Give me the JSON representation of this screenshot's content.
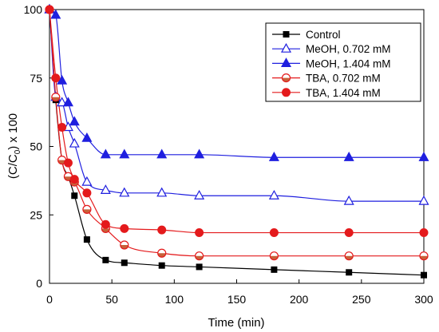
{
  "chart_data": {
    "type": "line",
    "xlabel": "Time (min)",
    "ylabel": {
      "text": "(C/C",
      "subscript": "0",
      "suffix": ") x 100"
    },
    "xlim": [
      0,
      300
    ],
    "ylim": [
      0,
      100
    ],
    "xticks": [
      0,
      50,
      100,
      150,
      200,
      250,
      300
    ],
    "yticks": [
      0,
      25,
      50,
      75,
      100
    ],
    "grid": false,
    "legend": "top-right",
    "x": [
      0,
      5,
      10,
      15,
      20,
      30,
      45,
      60,
      90,
      120,
      180,
      240,
      300
    ],
    "series": [
      {
        "name": "Control",
        "color": "#000000",
        "marker": "square-filled",
        "values": [
          100,
          67,
          45,
          39,
          32,
          16,
          8.5,
          7.5,
          6.5,
          6,
          5,
          4,
          3
        ]
      },
      {
        "name": "MeOH, 0.702 mM",
        "color": "#1f1fdf",
        "marker": "triangle-open",
        "values": [
          100,
          68,
          66,
          57,
          51,
          37,
          34,
          33,
          33,
          32,
          32,
          30,
          30
        ]
      },
      {
        "name": "MeOH, 1.404 mM",
        "color": "#1f1fdf",
        "marker": "triangle-filled",
        "values": [
          100,
          98,
          74,
          66,
          59,
          53,
          47,
          47,
          47,
          47,
          46,
          46,
          46
        ]
      },
      {
        "name": "TBA, 0.702 mM",
        "color": "#e41a1c",
        "marker": "circle-half",
        "marker_fill": "#c8613a",
        "values": [
          100,
          68,
          45,
          39,
          37,
          27,
          20,
          14,
          11,
          10,
          10,
          10,
          10
        ]
      },
      {
        "name": "TBA, 1.404 mM",
        "color": "#e41a1c",
        "marker": "circle-filled",
        "values": [
          100,
          75,
          57,
          44,
          38,
          33,
          21.5,
          20,
          19.5,
          18.5,
          18.5,
          18.5,
          18.5
        ]
      }
    ]
  }
}
